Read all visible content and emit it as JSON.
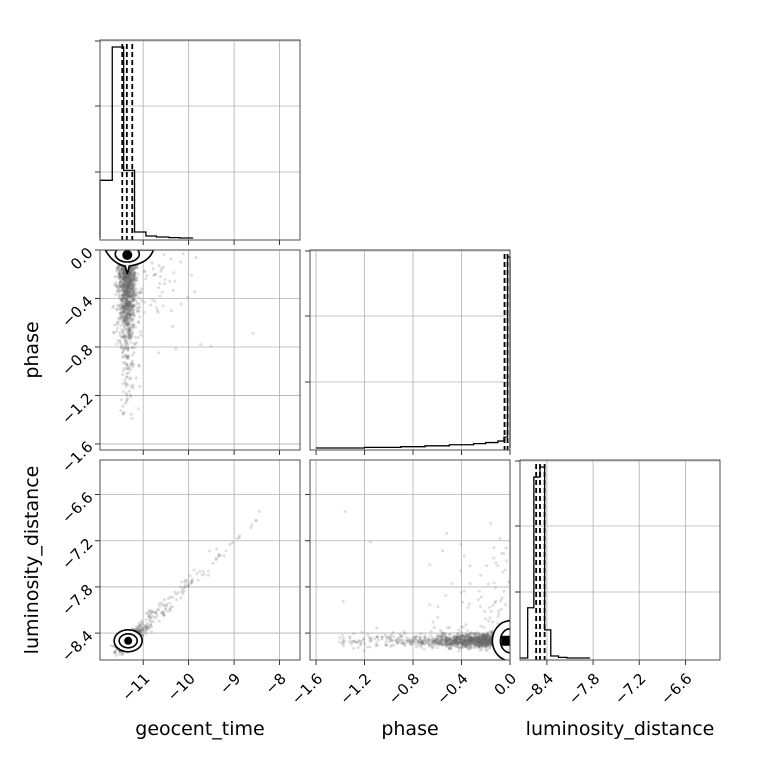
{
  "chart_data": {
    "type": "corner",
    "grid": true,
    "parameters": [
      "geocent_time",
      "phase",
      "luminosity_distance"
    ],
    "axis_labels": {
      "geocent_time": "geocent_time",
      "phase": "phase",
      "luminosity_distance": "luminosity_distance"
    },
    "ranges": {
      "geocent_time": [
        -11.95,
        -7.55
      ],
      "phase": [
        -1.65,
        0.0
      ],
      "luminosity_distance": [
        -8.75,
        -6.15
      ]
    },
    "ticks": {
      "geocent_time": [
        -11,
        -10,
        -9,
        -8
      ],
      "phase": [
        -1.6,
        -1.2,
        -0.8,
        -0.4,
        0.0
      ],
      "luminosity_distance": [
        -8.4,
        -7.8,
        -7.2,
        -6.6
      ]
    },
    "tick_labels": {
      "geocent_time": [
        "−11",
        "−10",
        "−9",
        "−8"
      ],
      "phase": [
        "−1.6",
        "−1.2",
        "−0.8",
        "−0.4",
        "0.0"
      ],
      "luminosity_distance": [
        "−8.4",
        "−7.8",
        "−7.2",
        "−6.6"
      ]
    },
    "marginals": {
      "geocent_time": {
        "bin_edges": [
          -11.95,
          -11.68,
          -11.43,
          -11.19,
          -10.94,
          -10.71,
          -10.44,
          -10.2,
          -9.9
        ],
        "density": [
          0.29,
          0.96,
          0.34,
          0.03,
          0.01,
          0.005,
          0.002,
          0.0
        ],
        "quantiles": [
          -11.46,
          -11.36,
          -11.24
        ]
      },
      "phase": {
        "bin_edges": [
          -1.6,
          -1.2,
          -0.9,
          -0.7,
          -0.5,
          -0.3,
          -0.2,
          -0.1,
          -0.05,
          -0.02,
          0.0
        ],
        "density": [
          0.0,
          0.003,
          0.006,
          0.01,
          0.015,
          0.02,
          0.025,
          0.032,
          0.05,
          0.88
        ],
        "quantiles": [
          -0.045,
          -0.02
        ]
      },
      "luminosity_distance": {
        "bin_edges": [
          -8.75,
          -8.65,
          -8.57,
          -8.49,
          -8.43,
          -8.35,
          -8.25,
          -8.14,
          -7.84
        ],
        "density": [
          0.0,
          0.25,
          0.9,
          0.95,
          0.14,
          0.01,
          0.003,
          0.0
        ],
        "quantiles": [
          -8.54,
          -8.49,
          -8.43
        ]
      }
    },
    "scatter_panels": [
      {
        "x": "geocent_time",
        "y": "phase",
        "center": [
          -11.35,
          -0.02
        ]
      },
      {
        "x": "geocent_time",
        "y": "luminosity_distance",
        "center": [
          -11.33,
          -8.5
        ]
      },
      {
        "x": "phase",
        "y": "luminosity_distance",
        "center": [
          -0.03,
          -8.5
        ]
      }
    ]
  }
}
